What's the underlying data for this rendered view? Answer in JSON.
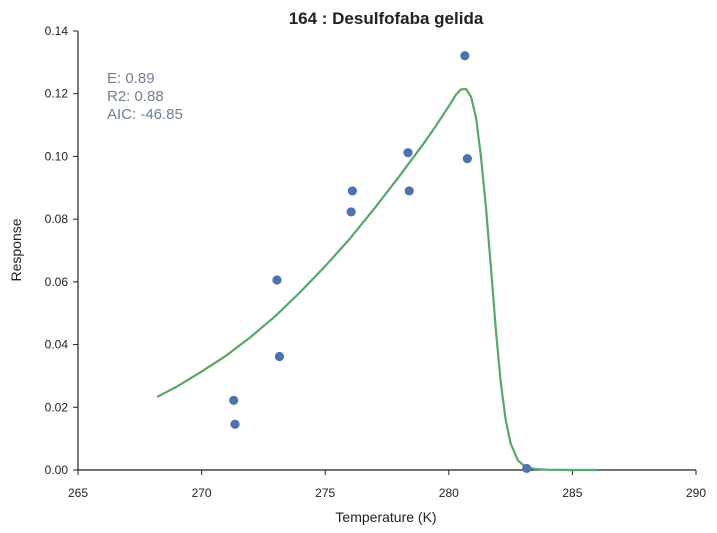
{
  "chart_data": {
    "type": "scatter",
    "title": "164 : Desulfofaba gelida",
    "xlabel": "Temperature (K)",
    "ylabel": "Response",
    "xlim": [
      265,
      290
    ],
    "ylim": [
      0,
      0.14
    ],
    "xticks": [
      265,
      270,
      275,
      280,
      285,
      290
    ],
    "yticks": [
      0.0,
      0.02,
      0.04,
      0.06,
      0.08,
      0.1,
      0.12,
      0.14
    ],
    "annotations": [
      "E:  0.89",
      "R2:  0.88",
      "AIC: -46.85"
    ],
    "colors": {
      "points": "#4c72b0",
      "fit": "#55a868"
    },
    "series": [
      {
        "type": "scatter",
        "points": [
          [
            271.3,
            0.0222
          ],
          [
            271.35,
            0.0146
          ],
          [
            273.05,
            0.0606
          ],
          [
            273.15,
            0.0362
          ],
          [
            276.05,
            0.0823
          ],
          [
            276.1,
            0.089
          ],
          [
            278.35,
            0.1012
          ],
          [
            278.4,
            0.089
          ],
          [
            280.65,
            0.1321
          ],
          [
            280.75,
            0.0993
          ],
          [
            283.15,
            0.0005
          ]
        ]
      },
      {
        "type": "line",
        "points": [
          [
            268.2,
            0.0233
          ],
          [
            269.0,
            0.0266
          ],
          [
            270.0,
            0.0314
          ],
          [
            271.0,
            0.0365
          ],
          [
            272.0,
            0.0425
          ],
          [
            273.0,
            0.0492
          ],
          [
            274.0,
            0.0568
          ],
          [
            275.0,
            0.065
          ],
          [
            276.0,
            0.0738
          ],
          [
            277.0,
            0.0835
          ],
          [
            278.0,
            0.0937
          ],
          [
            279.0,
            0.1043
          ],
          [
            279.5,
            0.11
          ],
          [
            280.0,
            0.116
          ],
          [
            280.3,
            0.1198
          ],
          [
            280.5,
            0.1214
          ],
          [
            280.7,
            0.1215
          ],
          [
            280.9,
            0.119
          ],
          [
            281.1,
            0.1125
          ],
          [
            281.3,
            0.1
          ],
          [
            281.5,
            0.084
          ],
          [
            281.7,
            0.065
          ],
          [
            281.9,
            0.045
          ],
          [
            282.1,
            0.028
          ],
          [
            282.3,
            0.016
          ],
          [
            282.5,
            0.0085
          ],
          [
            282.8,
            0.003
          ],
          [
            283.1,
            0.001
          ],
          [
            283.5,
            0.0003
          ],
          [
            284.0,
            0.0001
          ],
          [
            285.0,
            0.0
          ],
          [
            286.0,
            0.0
          ]
        ]
      }
    ]
  }
}
